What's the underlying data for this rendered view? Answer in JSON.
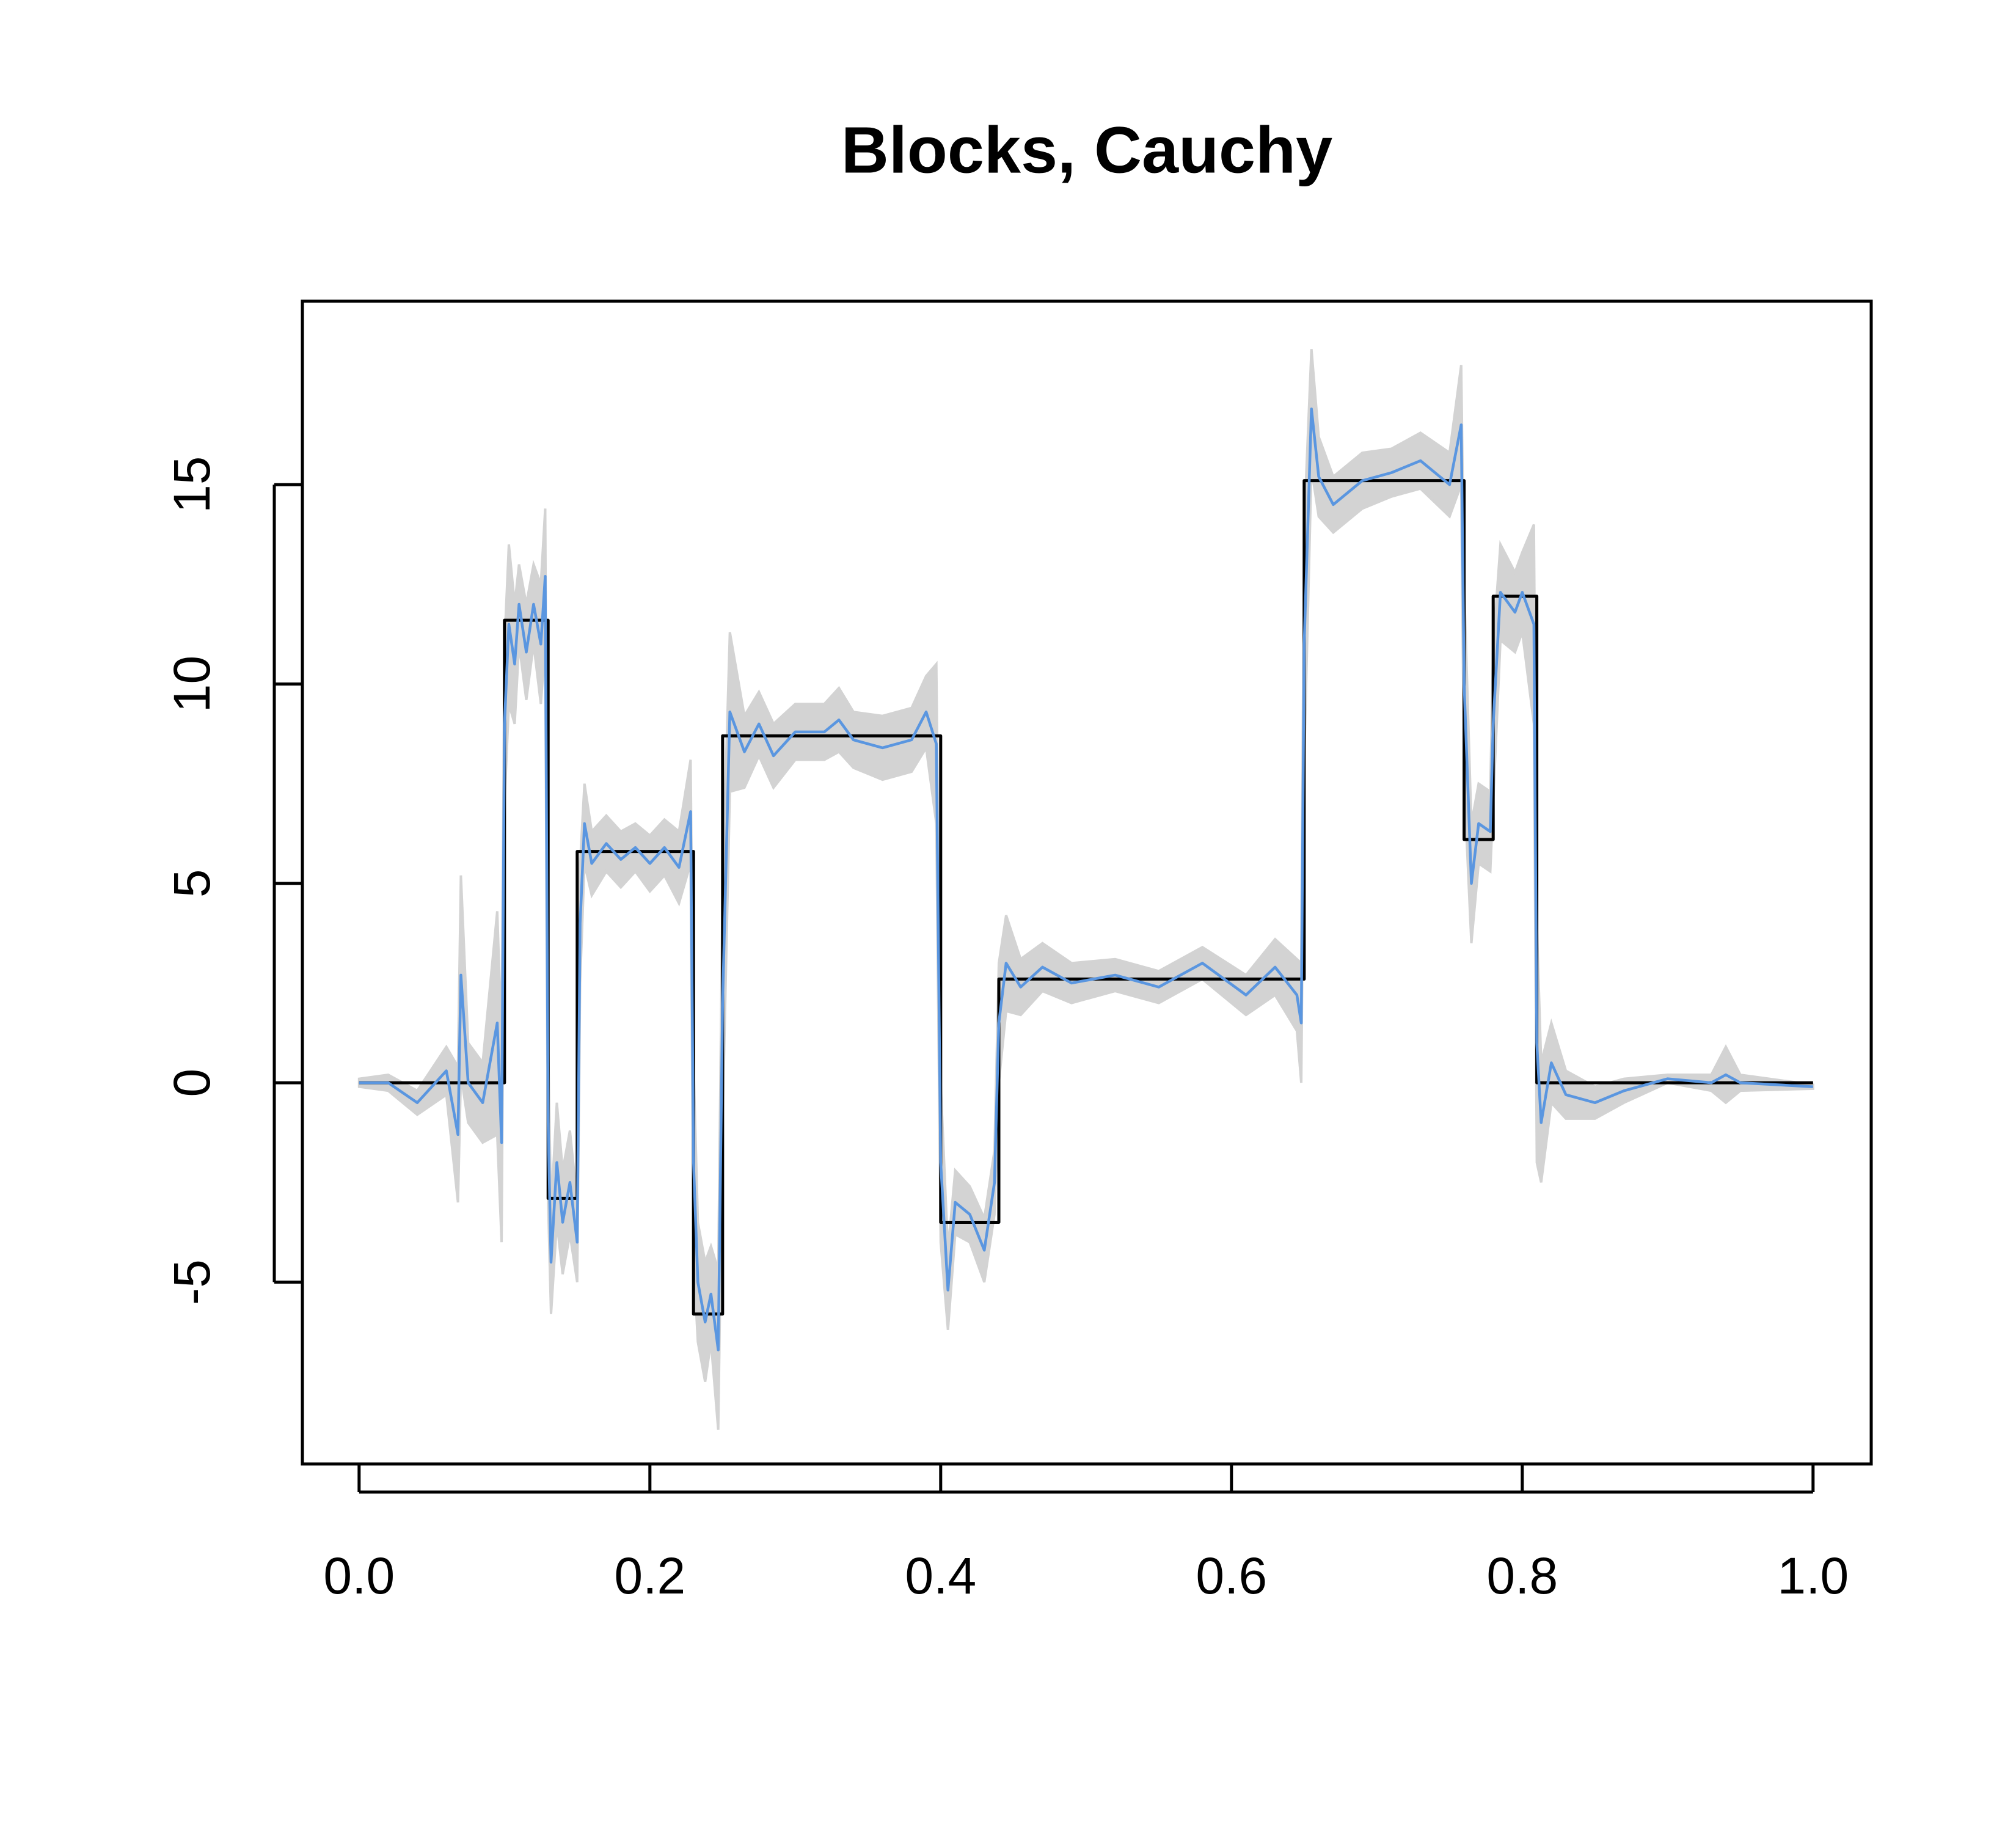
{
  "chart_data": {
    "type": "line",
    "title": "Blocks, Cauchy",
    "xlim": [
      -0.039,
      1.04
    ],
    "ylim": [
      -9.56,
      19.6
    ],
    "xticks": [
      {
        "value": 0,
        "label": "0.0"
      },
      0.2,
      0.4,
      0.6,
      0.8,
      {
        "value": 1,
        "label": "1.0"
      }
    ],
    "yticks": [
      -5,
      0,
      5,
      10,
      15
    ],
    "band": {
      "color": "#d3d3d3",
      "x": [
        0,
        0.02,
        0.04,
        0.06,
        0.068,
        0.07,
        0.075,
        0.085,
        0.095,
        0.098,
        0.1,
        0.103,
        0.107,
        0.11,
        0.115,
        0.12,
        0.125,
        0.128,
        0.13,
        0.132,
        0.136,
        0.14,
        0.145,
        0.15,
        0.152,
        0.155,
        0.16,
        0.17,
        0.18,
        0.19,
        0.2,
        0.21,
        0.22,
        0.228,
        0.23,
        0.233,
        0.238,
        0.242,
        0.247,
        0.25,
        0.255,
        0.265,
        0.275,
        0.285,
        0.3,
        0.32,
        0.33,
        0.34,
        0.36,
        0.38,
        0.39,
        0.397,
        0.4,
        0.405,
        0.41,
        0.42,
        0.43,
        0.437,
        0.44,
        0.445,
        0.455,
        0.47,
        0.49,
        0.52,
        0.55,
        0.58,
        0.61,
        0.63,
        0.645,
        0.648,
        0.65,
        0.655,
        0.66,
        0.67,
        0.69,
        0.71,
        0.73,
        0.75,
        0.758,
        0.76,
        0.765,
        0.77,
        0.778,
        0.78,
        0.785,
        0.795,
        0.8,
        0.808,
        0.81,
        0.813,
        0.82,
        0.83,
        0.85,
        0.87,
        0.9,
        0.93,
        0.94,
        0.95,
        1
      ],
      "lower": [
        -0.1,
        -0.2,
        -0.8,
        -0.3,
        -3,
        0.2,
        -1,
        -1.5,
        -1.3,
        -4,
        7,
        9.5,
        9,
        11,
        9.6,
        11,
        9.5,
        11,
        -3,
        -5.8,
        -3.5,
        -4.8,
        -3.8,
        -5,
        2.5,
        5.5,
        4.7,
        5.3,
        4.9,
        5.3,
        4.8,
        5.2,
        4.5,
        5.5,
        -4.5,
        -6.5,
        -7.5,
        -6.5,
        -8.7,
        -1,
        7.3,
        7.4,
        8.2,
        7.4,
        8.1,
        8.1,
        8.3,
        7.9,
        7.6,
        7.8,
        8.4,
        6.5,
        -4,
        -6.2,
        -3.8,
        -4,
        -5,
        -3.3,
        0,
        1.8,
        1.7,
        2.3,
        2,
        2.3,
        2,
        2.6,
        1.7,
        2.2,
        1.3,
        0,
        8,
        15.4,
        14.2,
        13.8,
        14.4,
        14.7,
        14.9,
        14.2,
        15,
        7.5,
        3.5,
        5.5,
        5.3,
        7,
        11.1,
        10.8,
        11.3,
        9,
        -2,
        -2.5,
        -0.5,
        -0.9,
        -0.9,
        -0.5,
        0,
        -0.2,
        -0.5,
        -0.2,
        -0.15
      ],
      "upper": [
        0.1,
        0.2,
        -0.2,
        0.9,
        0.4,
        5.2,
        1,
        0.5,
        4.3,
        1,
        11,
        13.5,
        12,
        13,
        12,
        13,
        12.5,
        14.4,
        1,
        -3.2,
        -0.5,
        -2.2,
        -1.2,
        -3,
        5.5,
        7.5,
        6.3,
        6.7,
        6.3,
        6.5,
        6.2,
        6.6,
        6.3,
        8.1,
        0.5,
        -3.5,
        -4.5,
        -4.1,
        -4.7,
        5,
        11.3,
        9.2,
        9.8,
        9,
        9.5,
        9.5,
        9.9,
        9.3,
        9.2,
        9.4,
        10.2,
        10.5,
        0,
        -4.2,
        -2.2,
        -2.6,
        -3.4,
        -1.7,
        3,
        4.2,
        3.1,
        3.5,
        3,
        3.1,
        2.8,
        3.4,
        2.7,
        3.6,
        3.1,
        3,
        14,
        18.4,
        16.2,
        15.2,
        15.8,
        15.9,
        16.3,
        15.8,
        18,
        12.5,
        6.5,
        7.5,
        7.3,
        11,
        13.5,
        12.8,
        13.3,
        14,
        4,
        0.5,
        1.5,
        0.3,
        -0.1,
        0.1,
        0.2,
        0.2,
        0.9,
        0.2,
        -0.05
      ]
    },
    "series": [
      {
        "color": "#000000",
        "x": [
          0,
          0.1,
          0.1,
          0.13,
          0.13,
          0.15,
          0.15,
          0.23,
          0.23,
          0.25,
          0.25,
          0.4,
          0.4,
          0.44,
          0.44,
          0.65,
          0.65,
          0.76,
          0.76,
          0.78,
          0.78,
          0.81,
          0.81,
          1
        ],
        "values": [
          0,
          0,
          11.6,
          11.6,
          -2.9,
          -2.9,
          5.8,
          5.8,
          -5.8,
          -5.8,
          8.7,
          8.7,
          -3.5,
          -3.5,
          2.6,
          2.6,
          15.1,
          15.1,
          6.1,
          6.1,
          12.2,
          12.2,
          0,
          0
        ]
      },
      {
        "color": "#5a96e0",
        "x": [
          0,
          0.02,
          0.04,
          0.06,
          0.068,
          0.07,
          0.075,
          0.085,
          0.095,
          0.098,
          0.1,
          0.103,
          0.107,
          0.11,
          0.115,
          0.12,
          0.125,
          0.128,
          0.13,
          0.132,
          0.136,
          0.14,
          0.145,
          0.15,
          0.152,
          0.155,
          0.16,
          0.17,
          0.18,
          0.19,
          0.2,
          0.21,
          0.22,
          0.228,
          0.23,
          0.233,
          0.238,
          0.242,
          0.247,
          0.25,
          0.255,
          0.265,
          0.275,
          0.285,
          0.3,
          0.32,
          0.33,
          0.34,
          0.36,
          0.38,
          0.39,
          0.397,
          0.4,
          0.405,
          0.41,
          0.42,
          0.43,
          0.437,
          0.44,
          0.445,
          0.455,
          0.47,
          0.49,
          0.52,
          0.55,
          0.58,
          0.61,
          0.63,
          0.645,
          0.648,
          0.65,
          0.655,
          0.66,
          0.67,
          0.69,
          0.71,
          0.73,
          0.75,
          0.758,
          0.76,
          0.765,
          0.77,
          0.778,
          0.78,
          0.785,
          0.795,
          0.8,
          0.808,
          0.81,
          0.813,
          0.82,
          0.83,
          0.85,
          0.87,
          0.9,
          0.93,
          0.94,
          0.95,
          1
        ],
        "values": [
          0,
          0,
          -0.5,
          0.3,
          -1.3,
          2.7,
          0,
          -0.5,
          1.5,
          -1.5,
          9,
          11.5,
          10.5,
          12,
          10.8,
          12,
          11,
          12.7,
          -1,
          -4.5,
          -2,
          -3.5,
          -2.5,
          -4,
          4,
          6.5,
          5.5,
          6,
          5.6,
          5.9,
          5.5,
          5.9,
          5.4,
          6.8,
          -2,
          -5,
          -6,
          -5.3,
          -6.7,
          2,
          9.3,
          8.3,
          9,
          8.2,
          8.8,
          8.8,
          9.1,
          8.6,
          8.4,
          8.6,
          9.3,
          8.5,
          -2,
          -5.2,
          -3,
          -3.3,
          -4.2,
          -2.5,
          1.5,
          3,
          2.4,
          2.9,
          2.5,
          2.7,
          2.4,
          3,
          2.2,
          2.9,
          2.2,
          1.5,
          11,
          16.9,
          15.2,
          14.5,
          15.1,
          15.3,
          15.6,
          15,
          16.5,
          10,
          5,
          6.5,
          6.3,
          9,
          12.3,
          11.8,
          12.3,
          11.5,
          1,
          -1,
          0.5,
          -0.3,
          -0.5,
          -0.2,
          0.1,
          0,
          0.2,
          0,
          -0.1
        ]
      }
    ]
  }
}
